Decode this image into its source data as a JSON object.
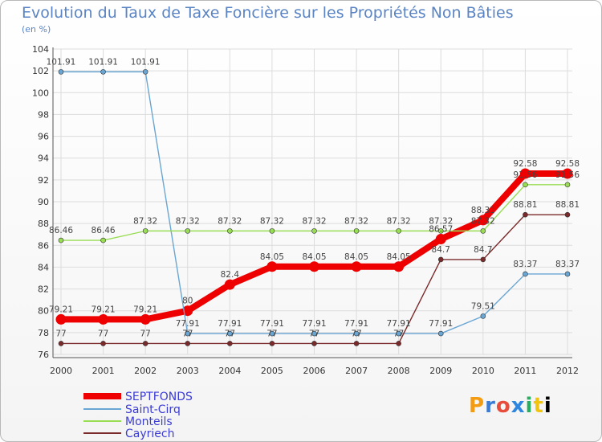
{
  "header": {
    "title": "Evolution du Taux de Taxe Foncière sur les Propriétés Non Bâties",
    "unit": "(en %)"
  },
  "logo": {
    "text": "Proxiti"
  },
  "chart_data": {
    "type": "line",
    "title": "Evolution du Taux de Taxe Foncière sur les Propriétés Non Bâties",
    "ylabel": "(en %)",
    "xlabel": "",
    "ylim": [
      76,
      104
    ],
    "yticks": [
      76,
      78,
      80,
      82,
      84,
      86,
      88,
      90,
      92,
      94,
      96,
      98,
      100,
      102,
      104
    ],
    "categories": [
      "2000",
      "2001",
      "2002",
      "2003",
      "2004",
      "2005",
      "2006",
      "2007",
      "2008",
      "2009",
      "2010",
      "2011",
      "2012"
    ],
    "legend_position": "bottom-left",
    "series": [
      {
        "name": "SEPTFONDS",
        "color": "#ee0000",
        "values": [
          79.21,
          79.21,
          79.21,
          80,
          82.4,
          84.05,
          84.05,
          84.05,
          84.05,
          86.57,
          88.31,
          92.58,
          92.58
        ],
        "labels": [
          "79.21",
          "79.21",
          "79.21",
          "80",
          "82.4",
          "84.05",
          "84.05",
          "84.05",
          "84.05",
          "86.57",
          "88.31",
          "92.58",
          "92.58"
        ]
      },
      {
        "name": "Saint-Cirq",
        "color": "#6aa6d4",
        "values": [
          101.91,
          101.91,
          101.91,
          77.91,
          77.91,
          77.91,
          77.91,
          77.91,
          77.91,
          77.91,
          79.51,
          83.37,
          83.37
        ],
        "labels": [
          "101.91",
          "101.91",
          "101.91",
          "77.91",
          "77.91",
          "77.91",
          "77.91",
          "77.91",
          "77.91",
          "77.91",
          "79.51",
          "83.37",
          "83.37"
        ]
      },
      {
        "name": "Monteils",
        "color": "#99dd55",
        "values": [
          86.46,
          86.46,
          87.32,
          87.32,
          87.32,
          87.32,
          87.32,
          87.32,
          87.32,
          87.32,
          87.32,
          91.56,
          91.56
        ],
        "labels": [
          "86.46",
          "86.46",
          "87.32",
          "87.32",
          "87.32",
          "87.32",
          "87.32",
          "87.32",
          "87.32",
          "87.32",
          "87.32",
          "91.56",
          "91.56"
        ]
      },
      {
        "name": "Cayriech",
        "color": "#7a2a2a",
        "values": [
          77,
          77,
          77,
          77,
          77,
          77,
          77,
          77,
          77,
          84.7,
          84.7,
          88.81,
          88.81
        ],
        "labels": [
          "77",
          "77",
          "77",
          "77",
          "77",
          "77",
          "77",
          "77",
          "77",
          "84.7",
          "84.7",
          "88.81",
          "88.81"
        ]
      }
    ]
  }
}
